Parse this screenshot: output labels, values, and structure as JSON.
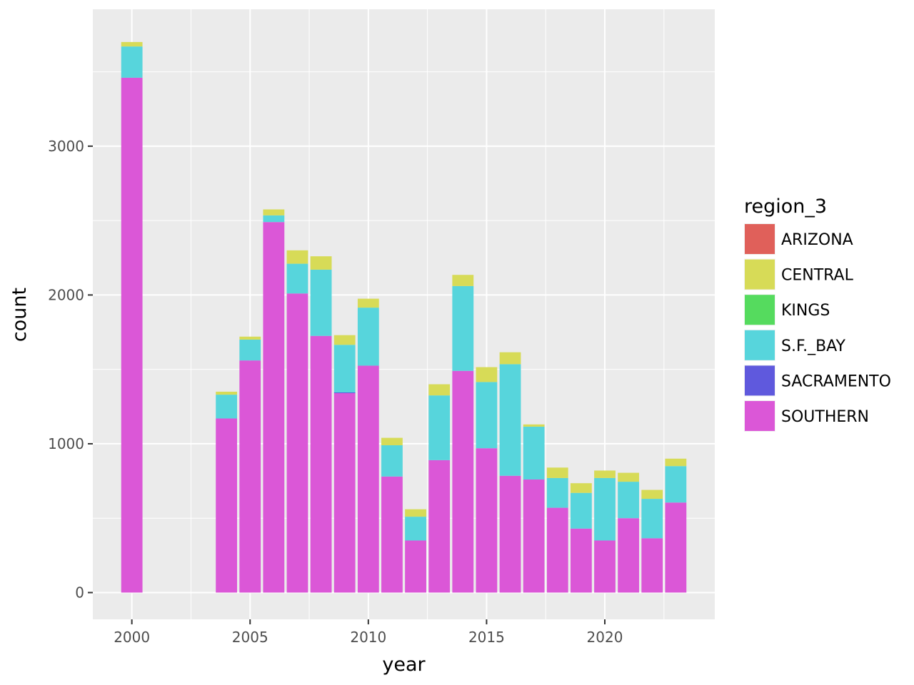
{
  "chart_data": {
    "type": "bar",
    "stacked": true,
    "xlabel": "year",
    "ylabel": "count",
    "xlim": [
      1998.35,
      2024.65
    ],
    "ylim": [
      -180,
      3920
    ],
    "x_ticks": [
      2000,
      2005,
      2010,
      2015,
      2020
    ],
    "y_ticks": [
      0,
      1000,
      2000,
      3000
    ],
    "grid": true,
    "panel_background": "#ebebeb",
    "legend": {
      "title": "region_3",
      "position": "right"
    },
    "x": [
      2000,
      2004,
      2005,
      2006,
      2007,
      2008,
      2009,
      2010,
      2011,
      2012,
      2013,
      2014,
      2015,
      2016,
      2017,
      2018,
      2019,
      2020,
      2021,
      2022,
      2023
    ],
    "series": [
      {
        "name": "ARIZONA",
        "color": "#e0605a",
        "values": [
          0,
          0,
          0,
          0,
          0,
          0,
          0,
          0,
          0,
          0,
          0,
          0,
          0,
          0,
          0,
          0,
          0,
          0,
          0,
          0,
          0
        ]
      },
      {
        "name": "CENTRAL",
        "color": "#d7db57",
        "values": [
          30,
          20,
          20,
          40,
          90,
          90,
          65,
          60,
          50,
          50,
          75,
          75,
          100,
          80,
          15,
          70,
          65,
          50,
          60,
          60,
          50
        ]
      },
      {
        "name": "KINGS",
        "color": "#55db5e",
        "values": [
          0,
          0,
          0,
          0,
          0,
          0,
          0,
          0,
          0,
          0,
          0,
          0,
          0,
          0,
          0,
          0,
          0,
          0,
          0,
          0,
          0
        ]
      },
      {
        "name": "S.F._BAY",
        "color": "#57d5dc",
        "values": [
          210,
          160,
          140,
          45,
          200,
          445,
          320,
          390,
          210,
          160,
          435,
          570,
          445,
          750,
          355,
          200,
          240,
          420,
          245,
          265,
          245
        ]
      },
      {
        "name": "SACRAMENTO",
        "color": "#5f59dd",
        "values": [
          0,
          0,
          0,
          0,
          0,
          0,
          5,
          0,
          0,
          0,
          0,
          0,
          0,
          0,
          0,
          0,
          0,
          0,
          0,
          0,
          0
        ]
      },
      {
        "name": "SOUTHERN",
        "color": "#db57d7",
        "values": [
          3460,
          1170,
          1560,
          2490,
          2010,
          1725,
          1340,
          1525,
          780,
          350,
          890,
          1490,
          970,
          785,
          760,
          570,
          430,
          350,
          500,
          365,
          605
        ]
      }
    ]
  }
}
